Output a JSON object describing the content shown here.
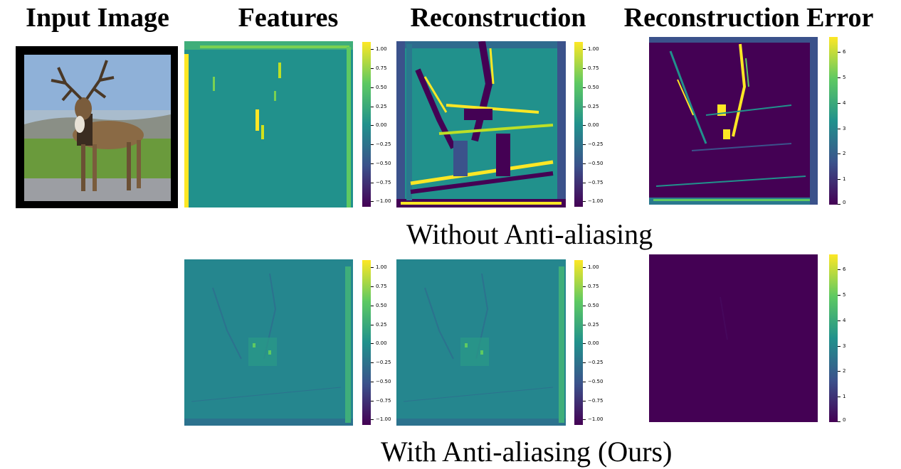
{
  "columns": {
    "input": "Input Image",
    "features": "Features",
    "reconstruction": "Reconstruction",
    "error": "Reconstruction Error"
  },
  "rows": {
    "without": "Without Anti-aliasing",
    "with": "With Anti-aliasing (Ours)"
  },
  "colorbars": {
    "signed_ticks": [
      "1.00",
      "0.75",
      "0.50",
      "0.25",
      "0.00",
      "−0.25",
      "−0.50",
      "−0.75",
      "−1.00"
    ],
    "error_ticks": [
      "6",
      "5",
      "4",
      "3",
      "2",
      "1",
      "0"
    ]
  },
  "colors": {
    "viridis_low": "#440154",
    "viridis_mid": "#21918c",
    "viridis_high": "#fde725",
    "sky": "#8fb1d8",
    "grass": "#6a9a3c",
    "deer": "#8a6a45"
  }
}
